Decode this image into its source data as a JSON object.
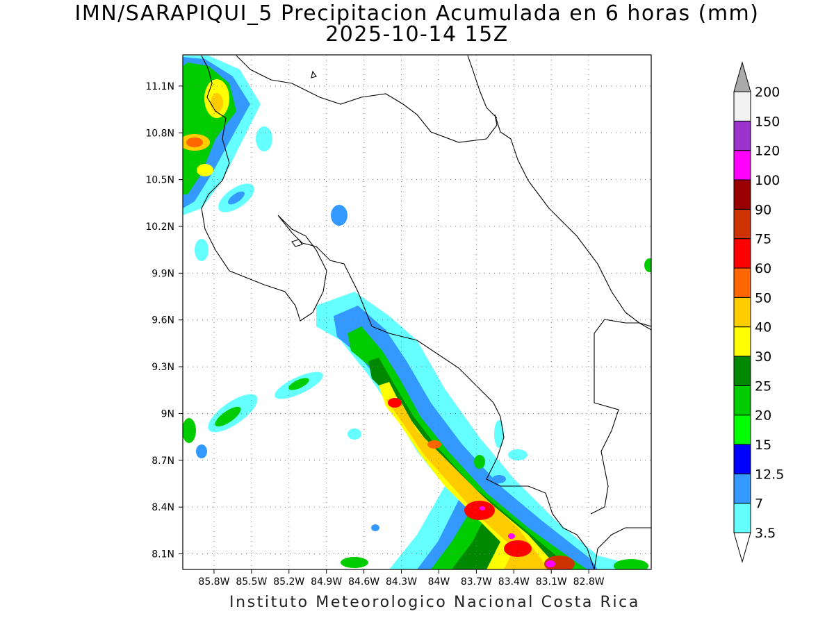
{
  "title": {
    "line1": "IMN/SARAPIQUI_5 Precipitacion Acumulada en 6 horas (mm)",
    "line2": "2025-10-14 15Z"
  },
  "map": {
    "lon_range": [
      -86.05,
      -82.3
    ],
    "lat_range": [
      8.0,
      11.3
    ],
    "lon_ticks": [
      "85.8W",
      "85.5W",
      "85.2W",
      "84.9W",
      "84.6W",
      "84.3W",
      "84W",
      "83.7W",
      "83.4W",
      "83.1W",
      "82.8W"
    ],
    "lat_ticks": [
      "11.1N",
      "10.8N",
      "10.5N",
      "10.2N",
      "9.9N",
      "9.6N",
      "9.3N",
      "9N",
      "8.7N",
      "8.4N",
      "8.1N"
    ],
    "grid": "dotted"
  },
  "colorbar": {
    "labels": [
      "3.5",
      "7",
      "12.5",
      "15",
      "20",
      "25",
      "30",
      "40",
      "50",
      "60",
      "75",
      "90",
      "100",
      "120",
      "150",
      "200"
    ],
    "colors": [
      "#ffffff",
      "#66ffff",
      "#3399ff",
      "#0000ff",
      "#00ff00",
      "#00cc00",
      "#008800",
      "#ffff00",
      "#ffcc00",
      "#ff6600",
      "#ff0000",
      "#cc3300",
      "#990000",
      "#ff00ff",
      "#9933cc",
      "#f2f2f2",
      "#aaaaaa"
    ]
  },
  "credit": "Instituto Meteorologico Nacional Costa Rica"
}
